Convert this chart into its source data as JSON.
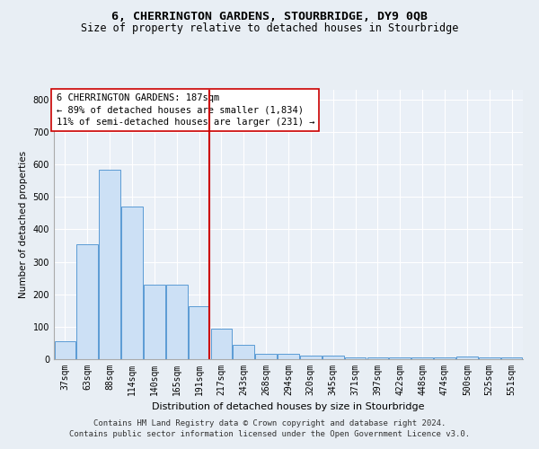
{
  "title": "6, CHERRINGTON GARDENS, STOURBRIDGE, DY9 0QB",
  "subtitle": "Size of property relative to detached houses in Stourbridge",
  "xlabel": "Distribution of detached houses by size in Stourbridge",
  "ylabel": "Number of detached properties",
  "categories": [
    "37sqm",
    "63sqm",
    "88sqm",
    "114sqm",
    "140sqm",
    "165sqm",
    "191sqm",
    "217sqm",
    "243sqm",
    "268sqm",
    "294sqm",
    "320sqm",
    "345sqm",
    "371sqm",
    "397sqm",
    "422sqm",
    "448sqm",
    "474sqm",
    "500sqm",
    "525sqm",
    "551sqm"
  ],
  "values": [
    55,
    355,
    585,
    470,
    230,
    230,
    162,
    93,
    43,
    17,
    17,
    12,
    12,
    5,
    5,
    5,
    5,
    5,
    8,
    5,
    5
  ],
  "bar_color": "#cce0f5",
  "bar_edge_color": "#5b9bd5",
  "vline_x_index": 6,
  "vline_color": "#cc0000",
  "annotation_line1": "6 CHERRINGTON GARDENS: 187sqm",
  "annotation_line2": "← 89% of detached houses are smaller (1,834)",
  "annotation_line3": "11% of semi-detached houses are larger (231) →",
  "annotation_box_color": "white",
  "annotation_box_edge": "#cc0000",
  "ylim": [
    0,
    830
  ],
  "yticks": [
    0,
    100,
    200,
    300,
    400,
    500,
    600,
    700,
    800
  ],
  "footer": "Contains HM Land Registry data © Crown copyright and database right 2024.\nContains public sector information licensed under the Open Government Licence v3.0.",
  "background_color": "#e8eef4",
  "plot_background": "#eaf0f7",
  "grid_color": "white",
  "title_fontsize": 9.5,
  "subtitle_fontsize": 8.5,
  "ylabel_fontsize": 7.5,
  "xlabel_fontsize": 8,
  "tick_fontsize": 7,
  "annotation_fontsize": 7.5,
  "footer_fontsize": 6.5
}
